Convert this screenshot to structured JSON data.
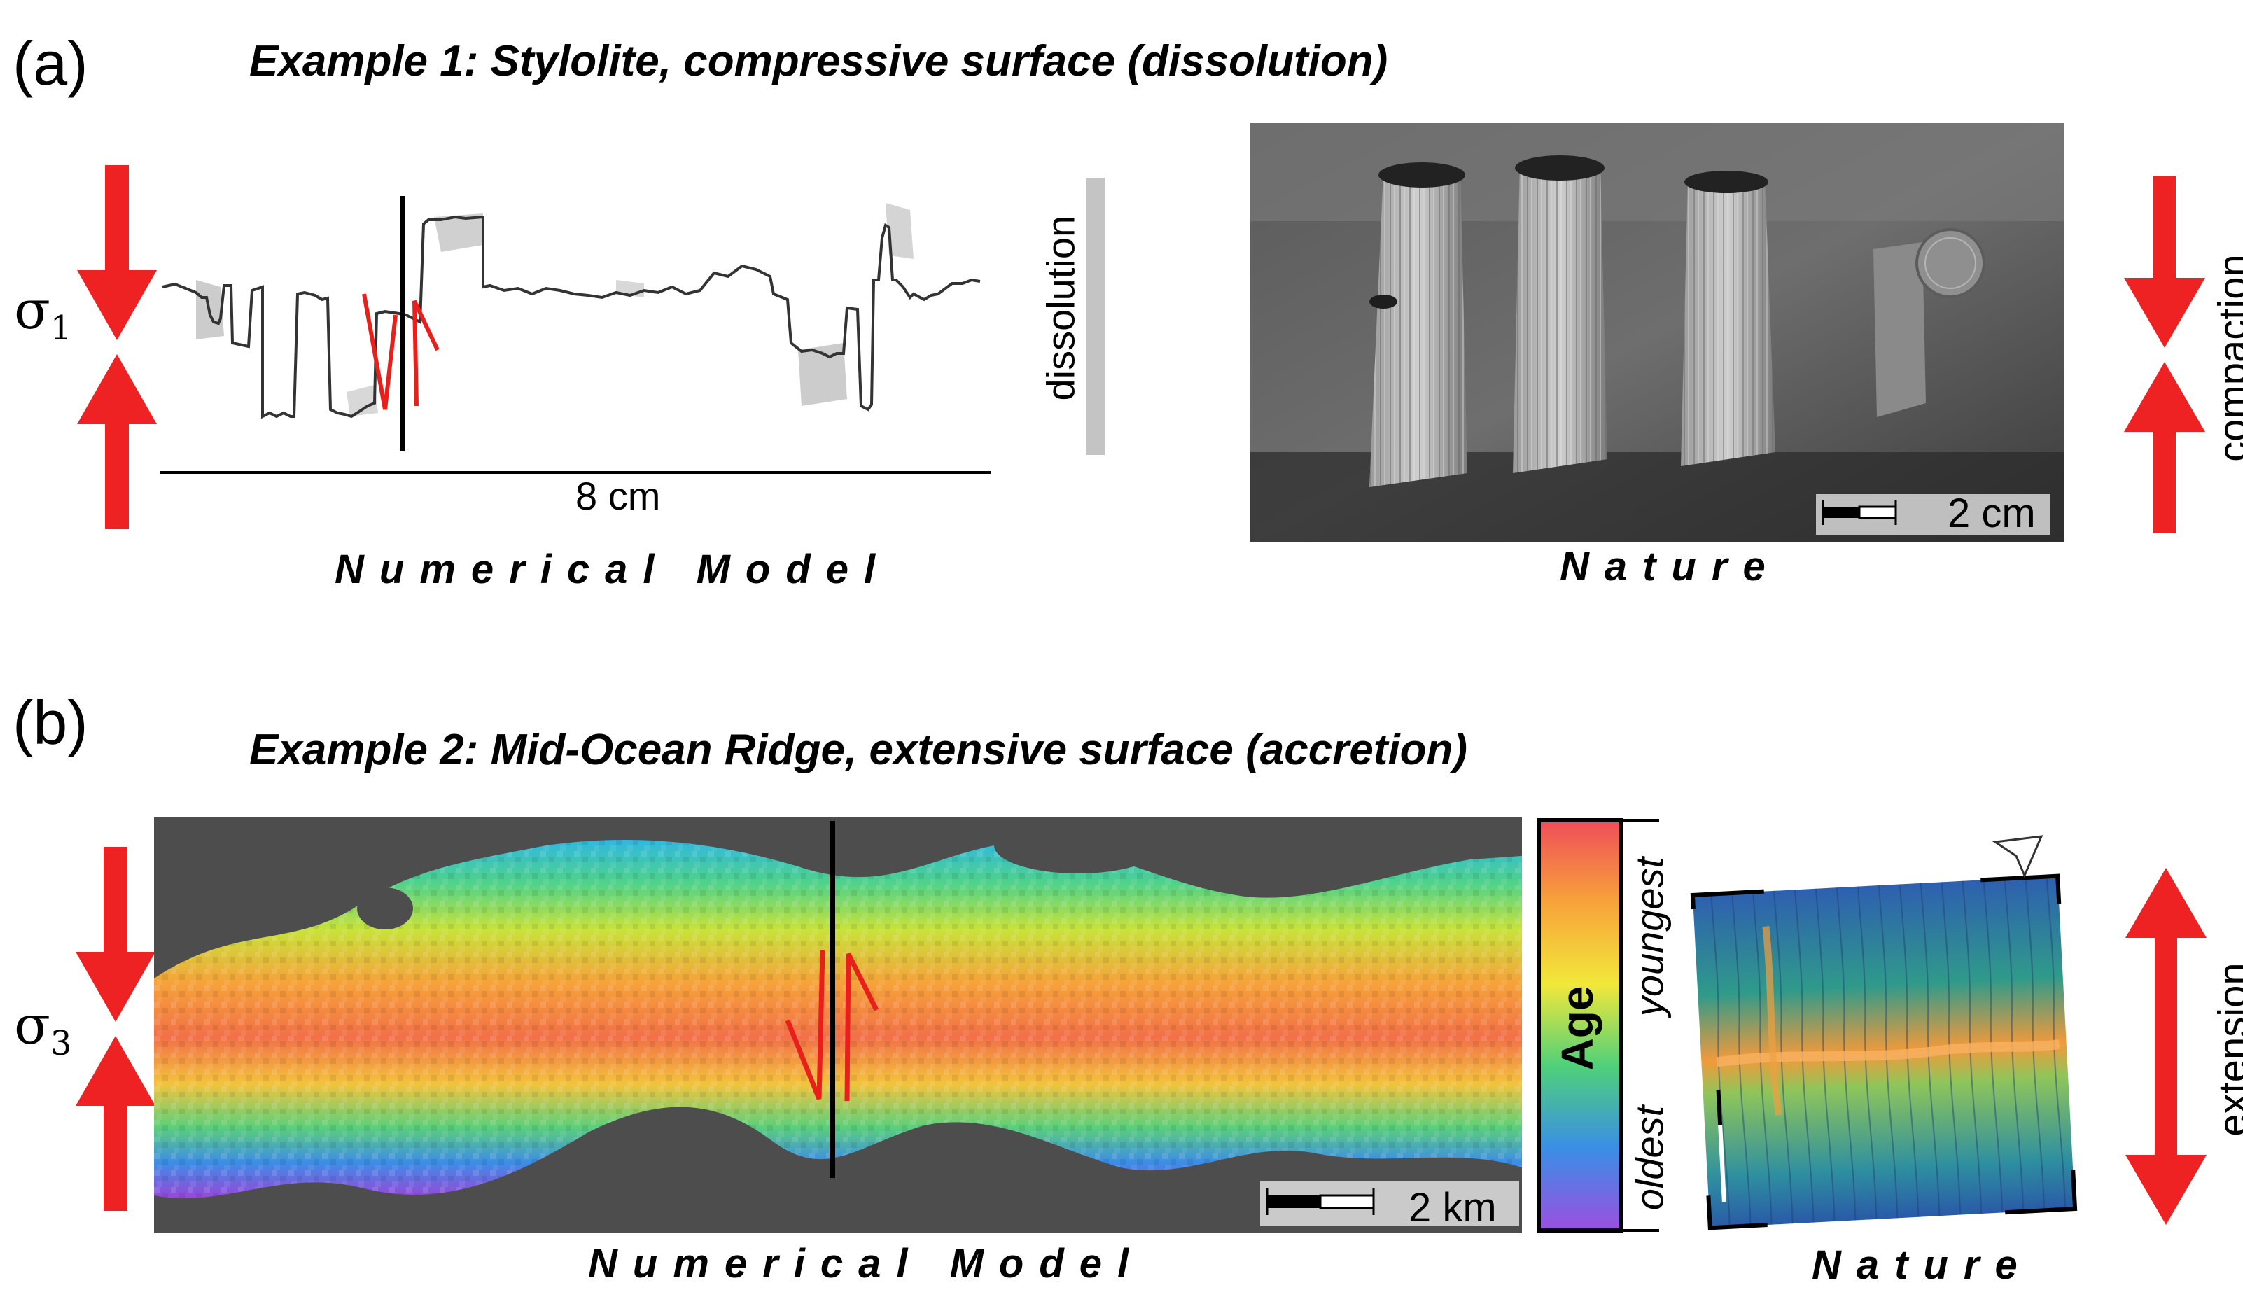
{
  "panel_a": {
    "label": "(a)",
    "title": "Example 1: Stylolite, compressive surface (dissolution)",
    "sigma_symbol": "σ",
    "sigma_subscript": "1",
    "model_scale_label": "8 cm",
    "side_bar_label": "dissolution",
    "model_caption": "Numerical Model",
    "photo_scale_label": "2 cm",
    "photo_caption": "Nature",
    "right_arrow_label": "compaction"
  },
  "panel_b": {
    "label": "(b)",
    "title": "Example 2: Mid-Ocean Ridge, extensive surface (accretion)",
    "sigma_symbol": "σ",
    "sigma_subscript": "3",
    "model_scale_label": "2 km",
    "colorbar_title": "Age",
    "colorbar_top_label": "youngest",
    "colorbar_bottom_label": "oldest",
    "model_caption": "Numerical Model",
    "nature_caption": "Nature",
    "right_arrow_label": "extension"
  },
  "colors": {
    "arrow_red": "#ee2222",
    "fault_red": "#e8201c",
    "model_background": "#4d4d4d",
    "dissolution_bar": "#c4c4c4",
    "profile_line": "#333333",
    "dissolved_area": "#cccccc"
  },
  "icons": [
    "north-arrow-icon"
  ]
}
